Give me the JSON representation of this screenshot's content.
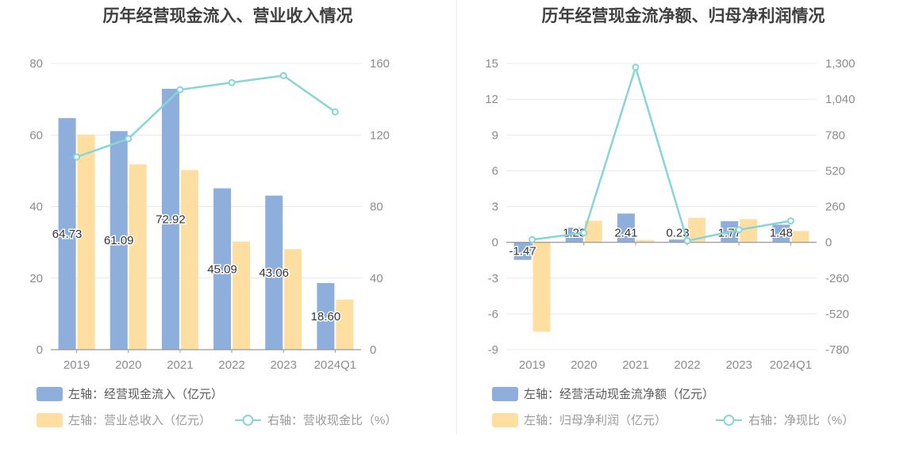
{
  "colors": {
    "bar_primary": "#8eaedb",
    "bar_secondary": "#ffdea2",
    "line": "#88d5d8",
    "axis_text": "#8c8c8c",
    "legend_text_primary": "#595959",
    "legend_text_muted": "#9a9a9a",
    "grid": "#e4e8f0"
  },
  "chart_data": [
    {
      "type": "bar",
      "title": "历年经营现金流入、营业收入情况",
      "categories": [
        "2019",
        "2020",
        "2021",
        "2022",
        "2023",
        "2024Q1"
      ],
      "left_axis": {
        "ticks": [
          "0",
          "20",
          "40",
          "60",
          "80"
        ],
        "ylim": [
          0,
          80
        ]
      },
      "right_axis": {
        "ticks": [
          "0",
          "40",
          "80",
          "120",
          "160"
        ],
        "ylim": [
          0,
          160
        ]
      },
      "series": [
        {
          "name": "左轴：经营现金流入（亿元）",
          "kind": "bar",
          "axis": "left",
          "color": "#8eaedb",
          "values": [
            64.73,
            61.09,
            72.92,
            45.09,
            43.06,
            18.6
          ],
          "labels": [
            "64.73",
            "61.09",
            "72.92",
            "45.09",
            "43.06",
            "18.60"
          ]
        },
        {
          "name": "左轴：营业总收入（亿元）",
          "kind": "bar",
          "axis": "left",
          "color": "#ffdea2",
          "values": [
            60.1,
            51.8,
            50.2,
            30.2,
            28.1,
            14.0
          ]
        },
        {
          "name": "右轴：营收现金比（%）",
          "kind": "line",
          "axis": "right",
          "color": "#88d5d8",
          "values": [
            107.7,
            117.9,
            145.3,
            149.3,
            153.2,
            132.9
          ]
        }
      ]
    },
    {
      "type": "bar",
      "title": "历年经营现金流净额、归母净利润情况",
      "categories": [
        "2019",
        "2020",
        "2021",
        "2022",
        "2023",
        "2024Q1"
      ],
      "left_axis": {
        "ticks": [
          "-9",
          "-6",
          "-3",
          "0",
          "3",
          "6",
          "9",
          "12",
          "15"
        ],
        "ylim": [
          -9,
          15
        ]
      },
      "right_axis": {
        "ticks": [
          "-780",
          "-520",
          "-260",
          "0",
          "260",
          "520",
          "780",
          "1,040",
          "1,300"
        ],
        "ylim": [
          -780,
          1300
        ]
      },
      "series": [
        {
          "name": "左轴：经营活动现金流净额（亿元）",
          "kind": "bar",
          "axis": "left",
          "color": "#8eaedb",
          "values": [
            -1.47,
            1.23,
            2.41,
            0.23,
            1.77,
            1.48
          ],
          "labels": [
            "-1.47",
            "1.23",
            "2.41",
            "0.23",
            "1.77",
            "1.48"
          ]
        },
        {
          "name": "左轴：归母净利润（亿元）",
          "kind": "bar",
          "axis": "left",
          "color": "#ffdea2",
          "values": [
            -7.5,
            1.8,
            0.2,
            2.05,
            1.95,
            0.95
          ]
        },
        {
          "name": "右轴：净现比（%）",
          "kind": "line",
          "axis": "right",
          "color": "#88d5d8",
          "values": [
            19.6,
            68.3,
            1272,
            11.2,
            90.8,
            155.8
          ]
        }
      ]
    }
  ]
}
